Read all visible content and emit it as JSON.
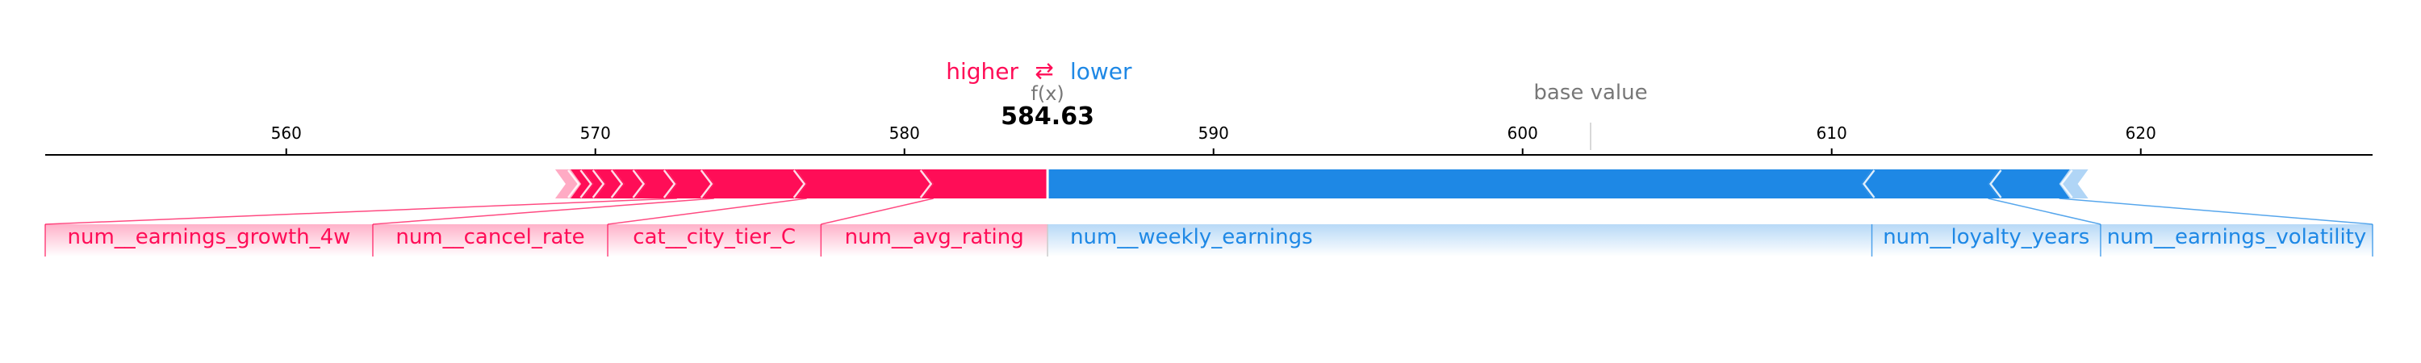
{
  "legend": {
    "higher_label": "higher",
    "lower_label": "lower",
    "higher_color": "#ff0d57",
    "lower_color": "#1e88e5",
    "arrow_icon": "⇄"
  },
  "output": {
    "label": "f(x)",
    "value_text": "584.63",
    "value": 584.63
  },
  "base": {
    "label": "base value",
    "value": 602.2
  },
  "chart_data": {
    "type": "force-plot",
    "xlim": [
      552.2,
      627.5
    ],
    "ticks": [
      560,
      570,
      580,
      590,
      600,
      610,
      620
    ],
    "tick_labels": [
      "560",
      "570",
      "580",
      "590",
      "600",
      "610",
      "620"
    ],
    "output_value": 584.63,
    "base_value": 602.2,
    "positive_color": "#ff0d57",
    "negative_color": "#1e88e5",
    "positive_segments": [
      {
        "start": 580.6,
        "end": 584.63,
        "label": "num__avg_rating"
      },
      {
        "start": 576.5,
        "end": 580.6,
        "label": "cat__city_tier_C"
      },
      {
        "start": 573.5,
        "end": 576.5,
        "label": "num__cancel_rate"
      },
      {
        "start": 572.3,
        "end": 573.5,
        "label": "num__earnings_growth_4w"
      },
      {
        "start": 571.3,
        "end": 572.3,
        "label": ""
      },
      {
        "start": 570.6,
        "end": 571.3,
        "label": ""
      },
      {
        "start": 570.0,
        "end": 570.6,
        "label": ""
      },
      {
        "start": 569.6,
        "end": 570.0,
        "label": ""
      },
      {
        "start": 569.2,
        "end": 569.6,
        "label": ""
      },
      {
        "start": 568.7,
        "end": 569.2,
        "label": ""
      }
    ],
    "negative_segments": [
      {
        "start": 584.63,
        "end": 611.3,
        "label": "num__weekly_earnings"
      },
      {
        "start": 611.3,
        "end": 615.4,
        "label": "num__loyalty_years"
      },
      {
        "start": 615.4,
        "end": 617.7,
        "label": "num__earnings_volatility"
      },
      {
        "start": 617.7,
        "end": 618.3,
        "label": ""
      }
    ],
    "labels": [
      {
        "text": "num__earnings_growth_4w",
        "segment": "positive",
        "index": 3,
        "sign": "positive",
        "x_from": 552.2,
        "x_to": 562.8
      },
      {
        "text": "num__cancel_rate",
        "segment": "positive",
        "index": 2,
        "sign": "positive",
        "x_from": 562.8,
        "x_to": 570.4
      },
      {
        "text": "cat__city_tier_C",
        "segment": "positive",
        "index": 1,
        "sign": "positive",
        "x_from": 570.4,
        "x_to": 577.3
      },
      {
        "text": "num__avg_rating",
        "segment": "positive",
        "index": 0,
        "sign": "positive",
        "x_from": 577.3,
        "x_to": 584.63
      },
      {
        "text": "num__weekly_earnings",
        "segment": "negative",
        "index": 0,
        "sign": "negative",
        "x_from": 584.63,
        "x_to": 611.3
      },
      {
        "text": "num__loyalty_years",
        "segment": "negative",
        "index": 1,
        "sign": "negative",
        "x_from": 611.3,
        "x_to": 618.7
      },
      {
        "text": "num__earnings_volatility",
        "segment": "negative",
        "index": 2,
        "sign": "negative",
        "x_from": 618.7,
        "x_to": 627.5
      }
    ]
  }
}
